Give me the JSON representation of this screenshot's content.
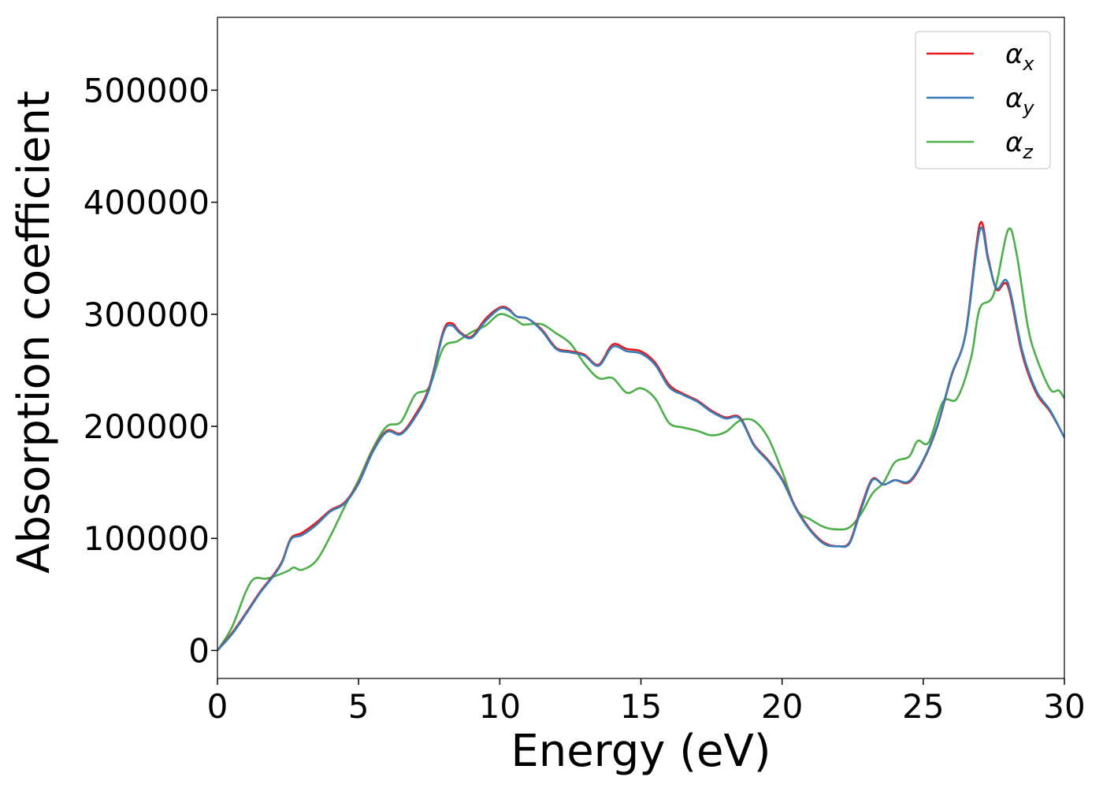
{
  "chart_data": {
    "type": "line",
    "title": "",
    "xlabel": "Energy (eV)",
    "ylabel": "Absorption coefficient",
    "xlim": [
      0,
      30
    ],
    "ylim": [
      -25000,
      565000
    ],
    "xticks": [
      0,
      5,
      10,
      15,
      20,
      25,
      30
    ],
    "xtick_labels": [
      "0",
      "5",
      "10",
      "15",
      "20",
      "25",
      "30"
    ],
    "yticks": [
      0,
      100000,
      200000,
      300000,
      400000,
      500000
    ],
    "ytick_labels": [
      "0",
      "100000",
      "200000",
      "300000",
      "400000",
      "500000"
    ],
    "grid": false,
    "legend_position": "top-right",
    "series": [
      {
        "name": "α_x",
        "label_main": "α",
        "label_sub": "x",
        "color": "#e41a1c",
        "points": [
          [
            0,
            0
          ],
          [
            0.5,
            15000
          ],
          [
            1,
            33000
          ],
          [
            1.5,
            52000
          ],
          [
            2,
            68000
          ],
          [
            2.3,
            80000
          ],
          [
            2.6,
            100000
          ],
          [
            3,
            105000
          ],
          [
            3.5,
            114000
          ],
          [
            4,
            125000
          ],
          [
            4.5,
            132000
          ],
          [
            5,
            150000
          ],
          [
            5.5,
            178000
          ],
          [
            6,
            196000
          ],
          [
            6.5,
            194000
          ],
          [
            7,
            210000
          ],
          [
            7.5,
            235000
          ],
          [
            8,
            285000
          ],
          [
            8.3,
            292000
          ],
          [
            8.6,
            284000
          ],
          [
            9,
            280000
          ],
          [
            9.5,
            296000
          ],
          [
            10,
            306000
          ],
          [
            10.3,
            305000
          ],
          [
            10.6,
            298000
          ],
          [
            11,
            296000
          ],
          [
            11.5,
            286000
          ],
          [
            12,
            270000
          ],
          [
            12.5,
            267000
          ],
          [
            13,
            264000
          ],
          [
            13.5,
            255000
          ],
          [
            14,
            273000
          ],
          [
            14.5,
            269000
          ],
          [
            15,
            267000
          ],
          [
            15.5,
            257000
          ],
          [
            16,
            237000
          ],
          [
            16.5,
            229000
          ],
          [
            17,
            223000
          ],
          [
            17.5,
            214000
          ],
          [
            18,
            208000
          ],
          [
            18.5,
            208000
          ],
          [
            19,
            184000
          ],
          [
            19.5,
            170000
          ],
          [
            20,
            153000
          ],
          [
            20.5,
            127000
          ],
          [
            21,
            108000
          ],
          [
            21.5,
            96000
          ],
          [
            22,
            93000
          ],
          [
            22.4,
            97000
          ],
          [
            22.8,
            128000
          ],
          [
            23.2,
            153000
          ],
          [
            23.6,
            148000
          ],
          [
            24,
            152000
          ],
          [
            24.5,
            150000
          ],
          [
            25,
            169000
          ],
          [
            25.5,
            200000
          ],
          [
            26,
            245000
          ],
          [
            26.5,
            283000
          ],
          [
            27,
            380000
          ],
          [
            27.3,
            350000
          ],
          [
            27.6,
            322000
          ],
          [
            28,
            325000
          ],
          [
            28.5,
            265000
          ],
          [
            29,
            230000
          ],
          [
            29.5,
            213000
          ],
          [
            30,
            190000
          ]
        ]
      },
      {
        "name": "α_y",
        "label_main": "α",
        "label_sub": "y",
        "color": "#377eb8",
        "points": [
          [
            0,
            0
          ],
          [
            0.5,
            14000
          ],
          [
            1,
            32000
          ],
          [
            1.5,
            51000
          ],
          [
            2,
            67000
          ],
          [
            2.3,
            79000
          ],
          [
            2.6,
            99000
          ],
          [
            3,
            103000
          ],
          [
            3.5,
            112000
          ],
          [
            4,
            124000
          ],
          [
            4.5,
            131000
          ],
          [
            5,
            149000
          ],
          [
            5.5,
            177000
          ],
          [
            6,
            195000
          ],
          [
            6.5,
            193000
          ],
          [
            7,
            208000
          ],
          [
            7.5,
            233000
          ],
          [
            8,
            283000
          ],
          [
            8.3,
            290000
          ],
          [
            8.6,
            283000
          ],
          [
            9,
            279000
          ],
          [
            9.5,
            294000
          ],
          [
            10,
            305000
          ],
          [
            10.3,
            304000
          ],
          [
            10.6,
            298000
          ],
          [
            11,
            296000
          ],
          [
            11.5,
            285000
          ],
          [
            12,
            269000
          ],
          [
            12.5,
            266000
          ],
          [
            13,
            263000
          ],
          [
            13.5,
            254000
          ],
          [
            14,
            271000
          ],
          [
            14.5,
            267000
          ],
          [
            15,
            265000
          ],
          [
            15.5,
            255000
          ],
          [
            16,
            235000
          ],
          [
            16.5,
            228000
          ],
          [
            17,
            222000
          ],
          [
            17.5,
            213000
          ],
          [
            18,
            207000
          ],
          [
            18.5,
            207000
          ],
          [
            19,
            183000
          ],
          [
            19.5,
            169000
          ],
          [
            20,
            152000
          ],
          [
            20.5,
            126000
          ],
          [
            21,
            107000
          ],
          [
            21.5,
            95000
          ],
          [
            22,
            93000
          ],
          [
            22.4,
            96000
          ],
          [
            22.8,
            126000
          ],
          [
            23.2,
            152000
          ],
          [
            23.6,
            148000
          ],
          [
            24,
            152000
          ],
          [
            24.5,
            151000
          ],
          [
            25,
            170000
          ],
          [
            25.5,
            201000
          ],
          [
            26,
            246000
          ],
          [
            26.5,
            282000
          ],
          [
            27,
            375000
          ],
          [
            27.3,
            348000
          ],
          [
            27.6,
            323000
          ],
          [
            28,
            328000
          ],
          [
            28.5,
            268000
          ],
          [
            29,
            232000
          ],
          [
            29.5,
            214000
          ],
          [
            30,
            190000
          ]
        ]
      },
      {
        "name": "α_z",
        "label_main": "α",
        "label_sub": "z",
        "color": "#4daf4a",
        "points": [
          [
            0,
            0
          ],
          [
            0.5,
            20000
          ],
          [
            1,
            52000
          ],
          [
            1.3,
            64000
          ],
          [
            1.7,
            64000
          ],
          [
            2,
            66000
          ],
          [
            2.5,
            71000
          ],
          [
            2.7,
            74000
          ],
          [
            3,
            72000
          ],
          [
            3.5,
            80000
          ],
          [
            4,
            102000
          ],
          [
            4.5,
            128000
          ],
          [
            5,
            152000
          ],
          [
            5.5,
            180000
          ],
          [
            6,
            200000
          ],
          [
            6.5,
            204000
          ],
          [
            7,
            228000
          ],
          [
            7.5,
            235000
          ],
          [
            8,
            270000
          ],
          [
            8.5,
            276000
          ],
          [
            9,
            284000
          ],
          [
            9.5,
            290000
          ],
          [
            10,
            300000
          ],
          [
            10.5,
            296000
          ],
          [
            10.8,
            291000
          ],
          [
            11,
            291000
          ],
          [
            11.5,
            291000
          ],
          [
            12,
            283000
          ],
          [
            12.5,
            274000
          ],
          [
            13,
            256000
          ],
          [
            13.5,
            243000
          ],
          [
            14,
            243000
          ],
          [
            14.5,
            230000
          ],
          [
            15,
            234000
          ],
          [
            15.5,
            225000
          ],
          [
            16,
            203000
          ],
          [
            16.5,
            199000
          ],
          [
            17,
            196000
          ],
          [
            17.5,
            192000
          ],
          [
            18,
            195000
          ],
          [
            18.5,
            205000
          ],
          [
            19,
            205000
          ],
          [
            19.5,
            190000
          ],
          [
            20,
            160000
          ],
          [
            20.5,
            126000
          ],
          [
            21,
            117000
          ],
          [
            21.5,
            110000
          ],
          [
            22,
            108000
          ],
          [
            22.4,
            110000
          ],
          [
            22.8,
            122000
          ],
          [
            23.2,
            140000
          ],
          [
            23.6,
            150000
          ],
          [
            24,
            168000
          ],
          [
            24.5,
            173000
          ],
          [
            24.8,
            187000
          ],
          [
            25.2,
            186000
          ],
          [
            25.7,
            222000
          ],
          [
            26.2,
            225000
          ],
          [
            26.7,
            262000
          ],
          [
            27,
            305000
          ],
          [
            27.5,
            318000
          ],
          [
            28,
            375000
          ],
          [
            28.3,
            355000
          ],
          [
            28.7,
            290000
          ],
          [
            29,
            262000
          ],
          [
            29.5,
            233000
          ],
          [
            29.8,
            232000
          ],
          [
            30,
            225000
          ]
        ]
      }
    ]
  }
}
